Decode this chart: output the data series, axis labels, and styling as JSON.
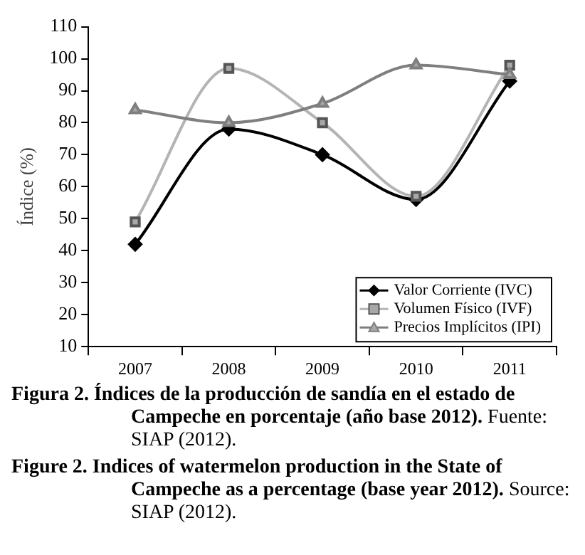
{
  "chart_data": {
    "type": "line",
    "title": "Figura 2. Índices de la producción de sandía en el estado de Campeche en porcentaje (año base 2012).",
    "subtitle": "Figure 2. Indices of watermelon production in the State of Campeche as a percentage (base year 2012).",
    "annotations": [
      "Fuente: SIAP (2012).",
      "Source: SIAP (2012)."
    ],
    "ylabel": "Índice (%)",
    "categories": [
      "2007",
      "2008",
      "2009",
      "2010",
      "2011"
    ],
    "series": [
      {
        "name": "Valor Corriente (IVC)",
        "color": "#000000",
        "marker": "diamond",
        "values": [
          42,
          78,
          70,
          56,
          93
        ]
      },
      {
        "name": "Volumen Físico (IVF)",
        "color": "#b4b4b4",
        "marker": "square",
        "values": [
          49,
          97,
          80,
          57,
          98
        ]
      },
      {
        "name": "Precios Implícitos (IPI)",
        "color": "#7f7f7f",
        "marker": "triangle",
        "values": [
          84,
          80,
          86,
          98,
          95
        ]
      }
    ],
    "ylim": [
      10,
      110
    ],
    "yticks": [
      10,
      20,
      30,
      40,
      50,
      60,
      70,
      80,
      90,
      100,
      110
    ],
    "grid": false,
    "legend": "bottom right"
  }
}
